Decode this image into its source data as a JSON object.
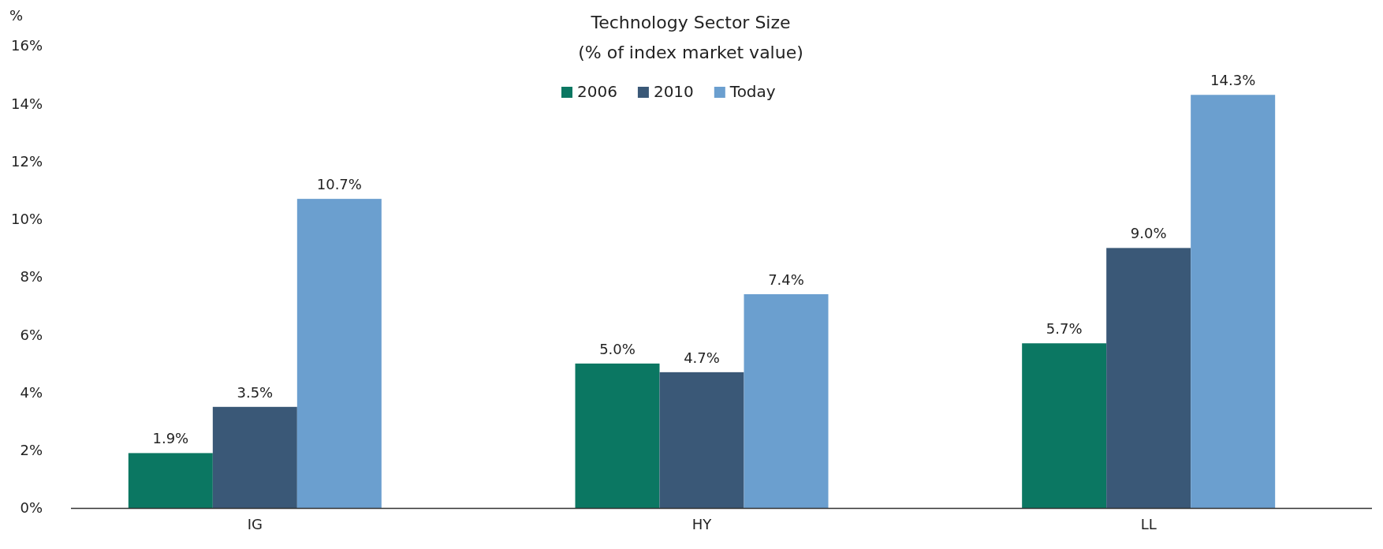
{
  "chart_data": {
    "type": "bar",
    "title": "Technology Sector Size",
    "subtitle": "(% of index market value)",
    "ylabel": "%",
    "categories": [
      "IG",
      "HY",
      "LL"
    ],
    "series": [
      {
        "name": "2006",
        "color": "#0b7762",
        "values": [
          1.9,
          5.0,
          5.7
        ],
        "value_labels": [
          "1.9%",
          "5.0%",
          "5.7%"
        ]
      },
      {
        "name": "2010",
        "color": "#3a5877",
        "values": [
          3.5,
          4.7,
          9.0
        ],
        "value_labels": [
          "3.5%",
          "4.7%",
          "9.0%"
        ]
      },
      {
        "name": "Today",
        "color": "#6b9fcf",
        "values": [
          10.7,
          7.4,
          14.3
        ],
        "value_labels": [
          "10.7%",
          "7.4%",
          "14.3%"
        ]
      }
    ],
    "ylim": [
      0,
      16
    ],
    "yticks": [
      {
        "value": 0,
        "label": "0%"
      },
      {
        "value": 2,
        "label": "2%"
      },
      {
        "value": 4,
        "label": "4%"
      },
      {
        "value": 6,
        "label": "6%"
      },
      {
        "value": 8,
        "label": "8%"
      },
      {
        "value": 10,
        "label": "10%"
      },
      {
        "value": 12,
        "label": "12%"
      },
      {
        "value": 14,
        "label": "14%"
      },
      {
        "value": 16,
        "label": "16%"
      }
    ],
    "legend": "top",
    "grid": false
  }
}
